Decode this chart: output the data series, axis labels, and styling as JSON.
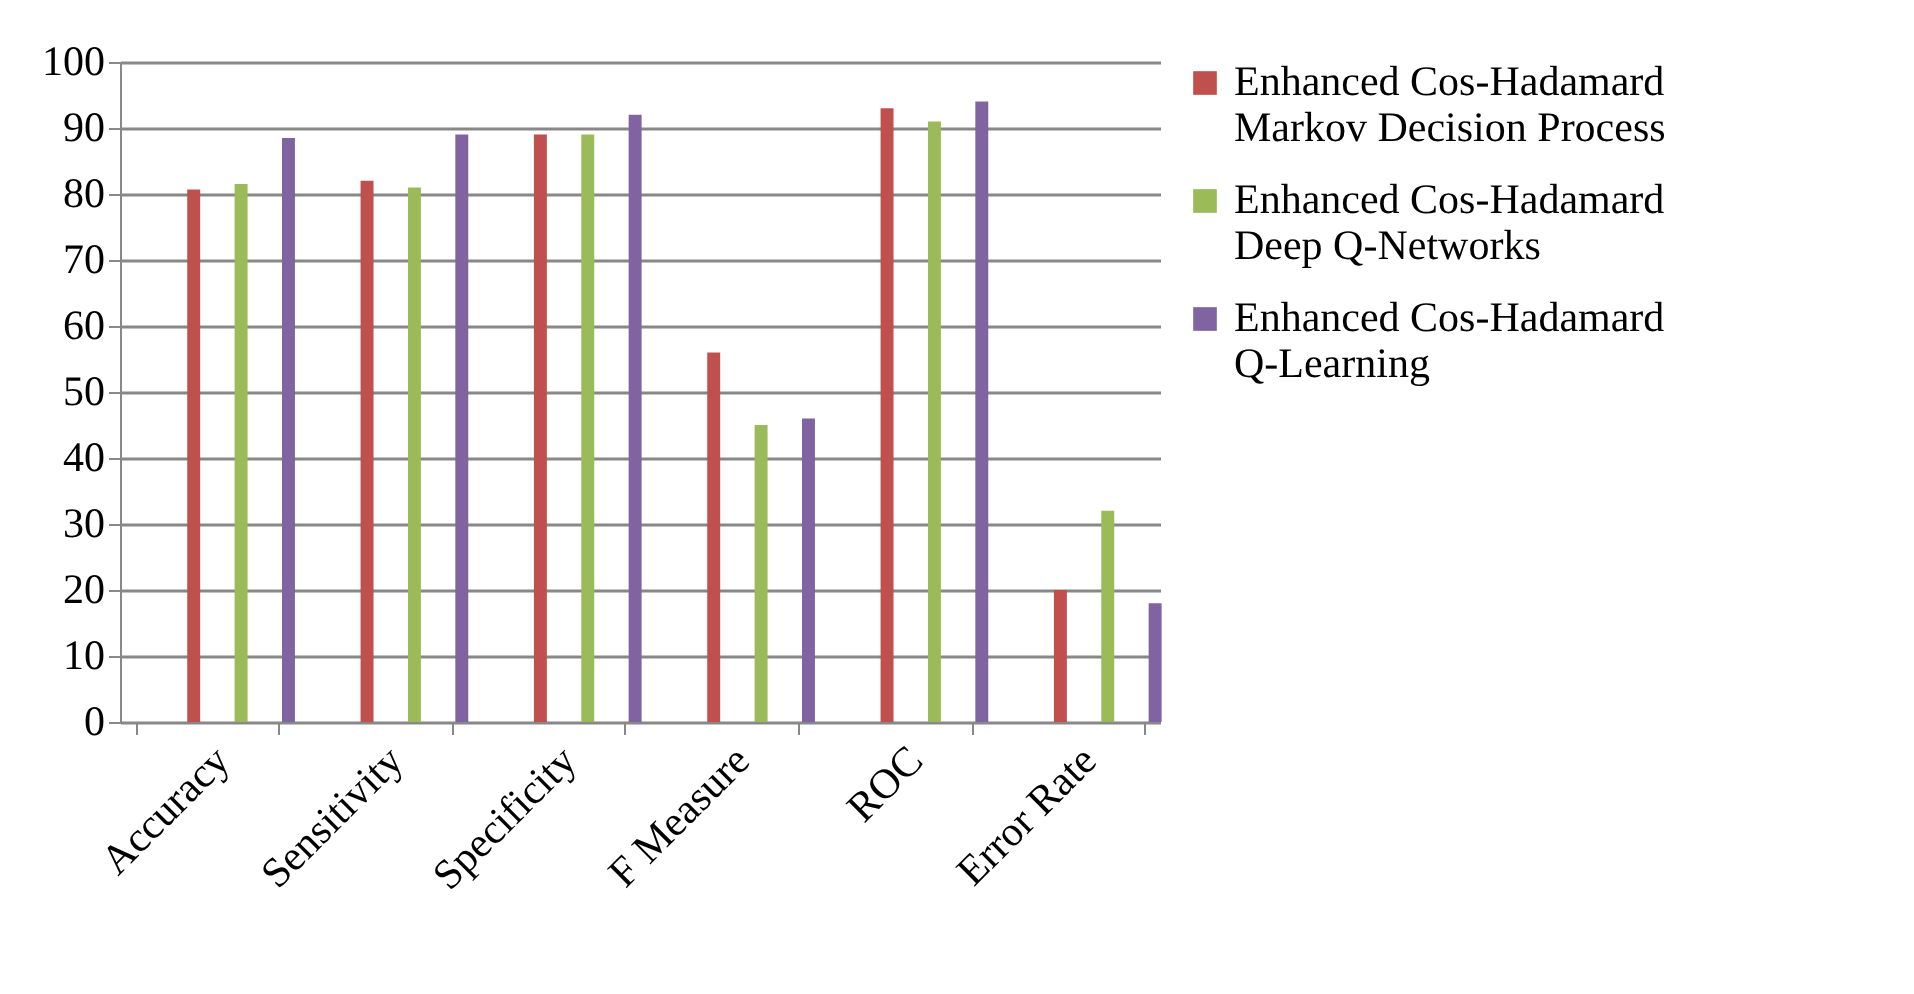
{
  "chart_data": {
    "type": "bar",
    "categories": [
      "Accuracy",
      "Sensitivity",
      "Specificity",
      "F Measure",
      "ROC",
      "Error Rate"
    ],
    "series": [
      {
        "name": "Enhanced Cos-Hadamard Markov Decision Process",
        "color": "#c0504d",
        "values": [
          80.7,
          82,
          89,
          56,
          93,
          20
        ]
      },
      {
        "name": "Enhanced Cos-Hadamard Deep Q-Networks",
        "color": "#9bbb59",
        "values": [
          81.5,
          81,
          89,
          45,
          91,
          32
        ]
      },
      {
        "name": "Enhanced Cos-Hadamard Q-Learning",
        "color": "#8064a2",
        "values": [
          88.5,
          89,
          92,
          46,
          94,
          18
        ]
      }
    ],
    "ylim": [
      0,
      100
    ],
    "yticks": [
      0,
      10,
      20,
      30,
      40,
      50,
      60,
      70,
      80,
      90,
      100
    ],
    "grid": "y",
    "legend": "right"
  }
}
